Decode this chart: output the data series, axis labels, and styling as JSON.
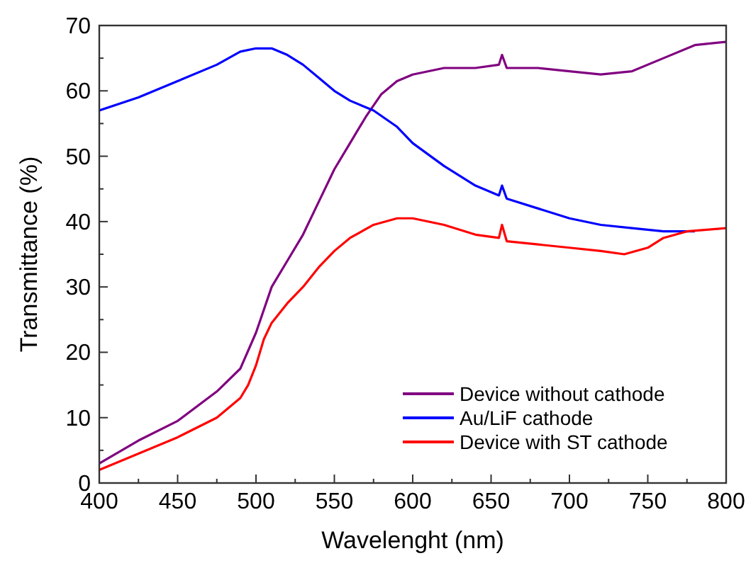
{
  "chart_data": {
    "type": "line",
    "xlabel": "Wavelenght (nm)",
    "ylabel": "Transmittance (%)",
    "xlim": [
      400,
      800
    ],
    "ylim": [
      0,
      70
    ],
    "xticks": [
      400,
      {
        "value": 425,
        "label": null
      },
      450,
      {
        "value": 475,
        "label": null
      },
      500,
      {
        "value": 525,
        "label": null
      },
      550,
      {
        "value": 575,
        "label": null
      },
      600,
      {
        "value": 625,
        "label": null
      },
      650,
      {
        "value": 675,
        "label": null
      },
      700,
      {
        "value": 725,
        "label": null
      },
      750,
      {
        "value": 775,
        "label": null
      },
      800
    ],
    "yticks": [
      0,
      {
        "value": 5,
        "label": null
      },
      10,
      {
        "value": 15,
        "label": null
      },
      20,
      {
        "value": 25,
        "label": null
      },
      30,
      {
        "value": 35,
        "label": null
      },
      40,
      {
        "value": 45,
        "label": null
      },
      50,
      {
        "value": 55,
        "label": null
      },
      60,
      {
        "value": 65,
        "label": null
      },
      70
    ],
    "grid": false,
    "legend": "bottom right",
    "marker": "none",
    "line_style": "solid",
    "series": [
      {
        "name": "Device without cathode",
        "color": "#800080",
        "x": [
          400,
          425,
          450,
          475,
          490,
          500,
          510,
          520,
          530,
          540,
          550,
          560,
          570,
          580,
          590,
          600,
          620,
          640,
          655,
          657,
          660,
          680,
          700,
          720,
          740,
          760,
          780,
          800
        ],
        "values": [
          3,
          6.5,
          9.5,
          14,
          17.5,
          23,
          30,
          34,
          38,
          43,
          48,
          52,
          56,
          59.5,
          61.5,
          62.5,
          63.5,
          63.5,
          64,
          65.5,
          63.5,
          63.5,
          63,
          62.5,
          63,
          65,
          67,
          67.5
        ]
      },
      {
        "name": "Au/LiF cathode",
        "color": "#0000ff",
        "x": [
          400,
          425,
          450,
          475,
          490,
          500,
          510,
          520,
          530,
          540,
          550,
          560,
          575,
          590,
          600,
          620,
          640,
          655,
          657,
          660,
          680,
          700,
          720,
          740,
          760,
          780
        ],
        "values": [
          57,
          59,
          61.5,
          64,
          66,
          66.5,
          66.5,
          65.5,
          64,
          62,
          60,
          58.5,
          57,
          54.5,
          52,
          48.5,
          45.5,
          44,
          45.5,
          43.5,
          42,
          40.5,
          39.5,
          39,
          38.5,
          38.5
        ]
      },
      {
        "name": "Device with ST cathode",
        "color": "#ff0000",
        "x": [
          400,
          425,
          450,
          475,
          490,
          495,
          500,
          505,
          510,
          520,
          530,
          540,
          550,
          560,
          575,
          590,
          600,
          620,
          640,
          655,
          657,
          660,
          680,
          700,
          720,
          735,
          750,
          760,
          775,
          800
        ],
        "values": [
          2,
          4.5,
          7,
          10,
          13,
          15,
          18,
          22,
          24.5,
          27.5,
          30,
          33,
          35.5,
          37.5,
          39.5,
          40.5,
          40.5,
          39.5,
          38,
          37.5,
          39.5,
          37,
          36.5,
          36,
          35.5,
          35,
          36,
          37.5,
          38.5,
          39
        ]
      }
    ]
  }
}
